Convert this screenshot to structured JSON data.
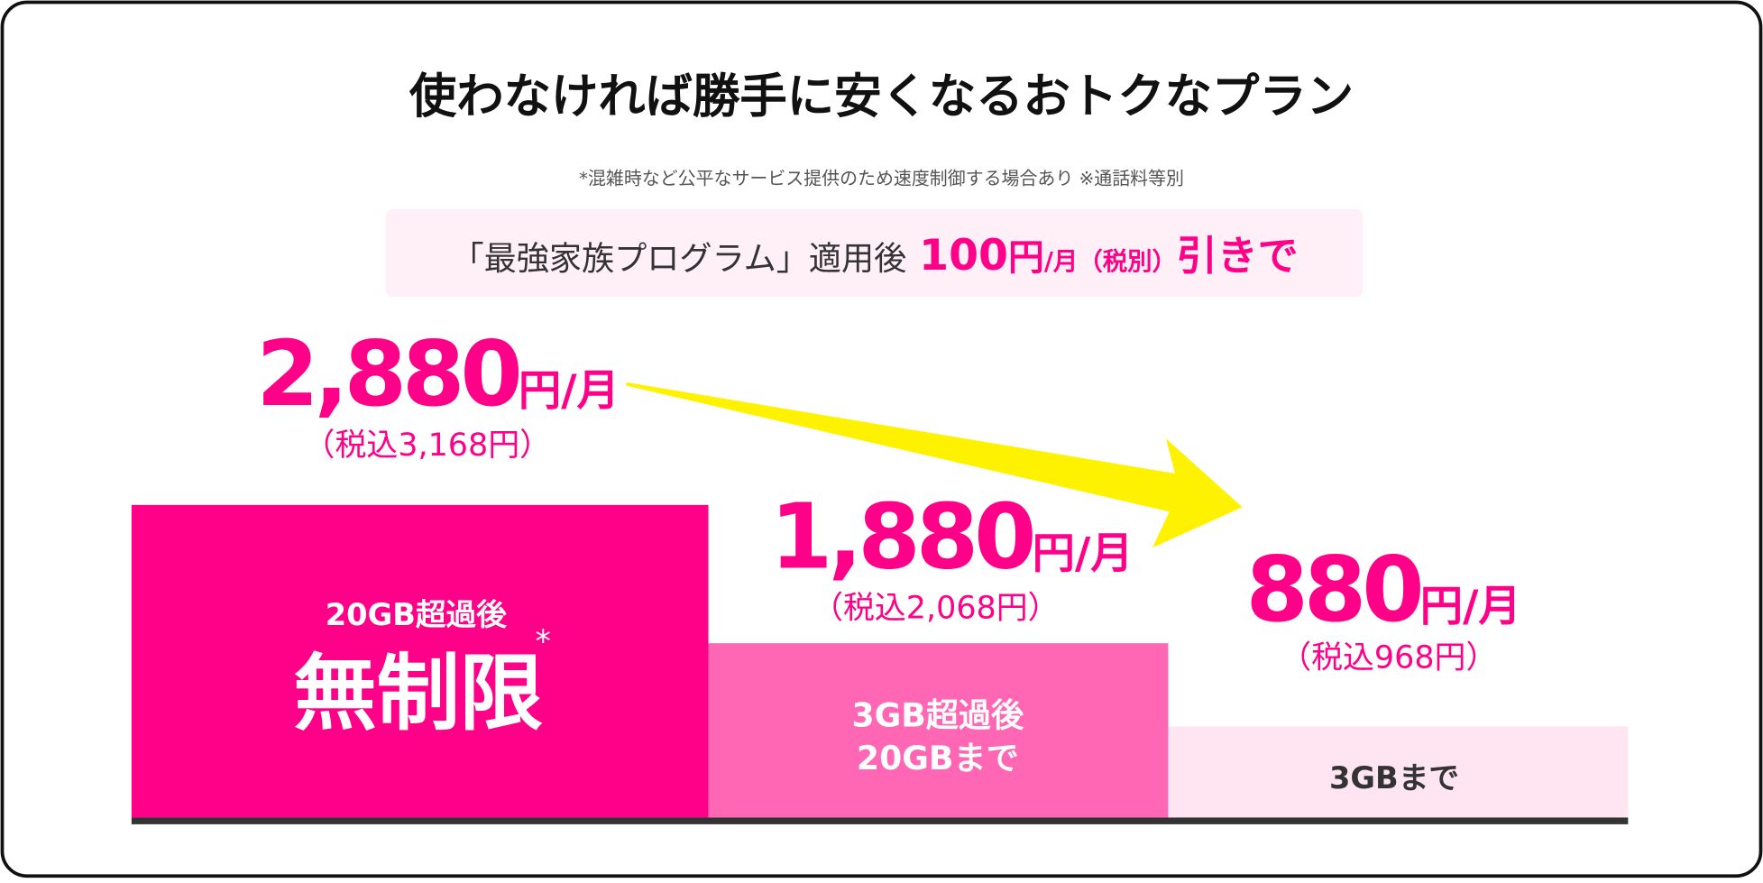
{
  "title": "使わなければ勝手に安くなるおトクなプラン",
  "note": "*混雑時など公平なサービス提供のため速度制御する場合あり ※通話料等別",
  "banner": {
    "program": "「最強家族プログラム」適用後",
    "discount": "100",
    "yen": "円",
    "per": "/月（税別）",
    "suffix": "引きで"
  },
  "tiers": [
    {
      "price": "2,880",
      "yen": "円",
      "per": "/月",
      "tax": "（税込3,168円）",
      "label_top": "20GB超過後",
      "label_main": "無制限",
      "mark": "*"
    },
    {
      "price": "1,880",
      "yen": "円",
      "per": "/月",
      "tax": "（税込2,068円）",
      "label_top": "3GB超過後",
      "label_main": "20GBまで"
    },
    {
      "price": "880",
      "yen": "円",
      "per": "/月",
      "tax": "（税込968円）",
      "label_main": "3GBまで"
    }
  ]
}
